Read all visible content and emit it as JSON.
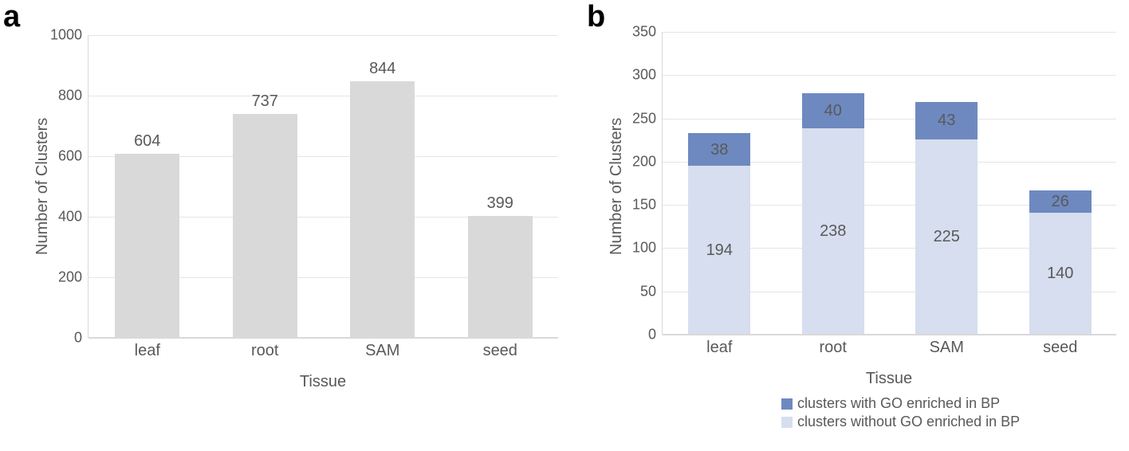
{
  "panel_a": {
    "label": "a",
    "type": "bar",
    "xlabel": "Tissue",
    "ylabel": "Number of Clusters",
    "categories": [
      "leaf",
      "root",
      "SAM",
      "seed"
    ],
    "values": [
      604,
      737,
      844,
      399
    ],
    "bar_color": "#d9d9d9",
    "ylim": [
      0,
      1000
    ],
    "ytick_step": 200,
    "yticks": [
      "0",
      "200",
      "400",
      "600",
      "800",
      "1000"
    ],
    "grid_color": "#e5e5e5",
    "axis_color": "#d9d9d9",
    "text_color": "#595959",
    "label_fontsize": 20,
    "tick_fontsize": 18,
    "bar_width": 0.55
  },
  "panel_b": {
    "label": "b",
    "type": "stacked-bar",
    "xlabel": "Tissue",
    "ylabel": "Number of Clusters",
    "categories": [
      "leaf",
      "root",
      "SAM",
      "seed"
    ],
    "series": [
      {
        "name": "clusters without GO enriched in BP",
        "color": "#d6deef",
        "values": [
          194,
          238,
          225,
          140
        ]
      },
      {
        "name": "clusters with GO enriched in BP",
        "color": "#6e89c0",
        "values": [
          38,
          40,
          43,
          26
        ]
      }
    ],
    "ylim": [
      0,
      350
    ],
    "ytick_step": 50,
    "yticks": [
      "0",
      "50",
      "100",
      "150",
      "200",
      "250",
      "300",
      "350"
    ],
    "grid_color": "#e5e5e5",
    "axis_color": "#d9d9d9",
    "text_color": "#595959",
    "label_fontsize": 20,
    "tick_fontsize": 18,
    "bar_width": 0.55,
    "legend": [
      "clusters with GO enriched in BP",
      "clusters without GO enriched in BP"
    ]
  }
}
